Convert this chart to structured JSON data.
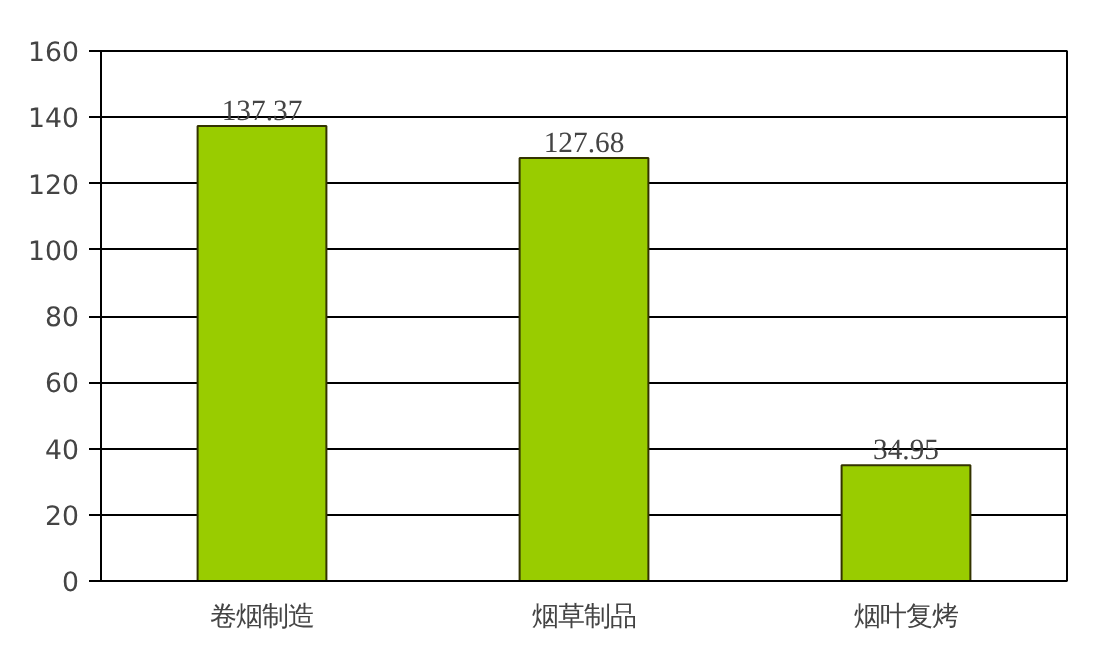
{
  "chart_data": {
    "type": "bar",
    "categories": [
      "卷烟制造",
      "烟草制品",
      "烟叶复烤"
    ],
    "values": [
      137.37,
      127.68,
      34.95
    ],
    "color": "#99cc00",
    "ylim": [
      0,
      160
    ],
    "yticks": [
      0,
      20,
      40,
      60,
      80,
      100,
      120,
      140,
      160
    ],
    "grid": "y",
    "data_labels": true
  }
}
